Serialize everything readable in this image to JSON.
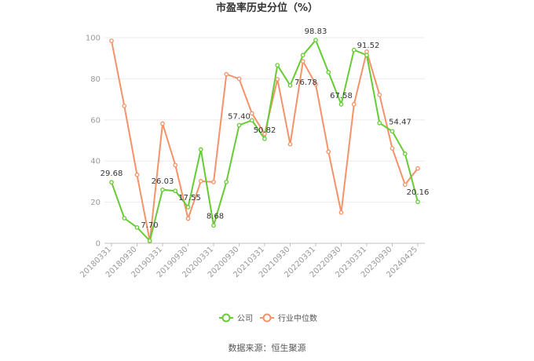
{
  "chart_data": {
    "type": "line",
    "title": "市盈率历史分位（%）",
    "ylim": [
      0,
      100
    ],
    "yticks": [
      0,
      20,
      40,
      60,
      80,
      100
    ],
    "grid": true,
    "legend_position": "bottom",
    "xtick_labels": [
      "20180331",
      "20180930",
      "20190331",
      "20190930",
      "20200331",
      "20200930",
      "20210331",
      "20210930",
      "20220331",
      "20220930",
      "20230331",
      "20230930",
      "20240425"
    ],
    "series": [
      {
        "name": "公司",
        "color": "#66cc33",
        "values": [
          29.68,
          12.2,
          7.7,
          1.2,
          26.03,
          25.5,
          17.55,
          45.6,
          8.68,
          29.8,
          57.4,
          59.8,
          50.82,
          86.6,
          76.78,
          91.5,
          98.83,
          83.2,
          67.58,
          94.0,
          91.52,
          58.5,
          54.47,
          43.5,
          20.16
        ],
        "labels": {
          "0": "29.68",
          "2": "7.70",
          "4": "26.03",
          "6": "17.55",
          "8": "8.68",
          "10": "57.40",
          "12": "50.82",
          "14": "76.78",
          "16": "98.83",
          "18": "67.58",
          "20": "91.52",
          "22": "54.47",
          "24": "20.16"
        }
      },
      {
        "name": "行业中位数",
        "color": "#f5926a",
        "values": [
          98.5,
          66.8,
          33.3,
          1.0,
          58.2,
          38.0,
          12.0,
          30.2,
          29.8,
          82.2,
          80.0,
          63.2,
          53.2,
          79.8,
          48.2,
          88.5,
          77.4,
          44.5,
          15.0,
          67.6,
          93.2,
          72.2,
          46.2,
          28.5,
          36.4
        ]
      }
    ]
  },
  "footer": {
    "source_label": "数据来源：恒生聚源"
  }
}
